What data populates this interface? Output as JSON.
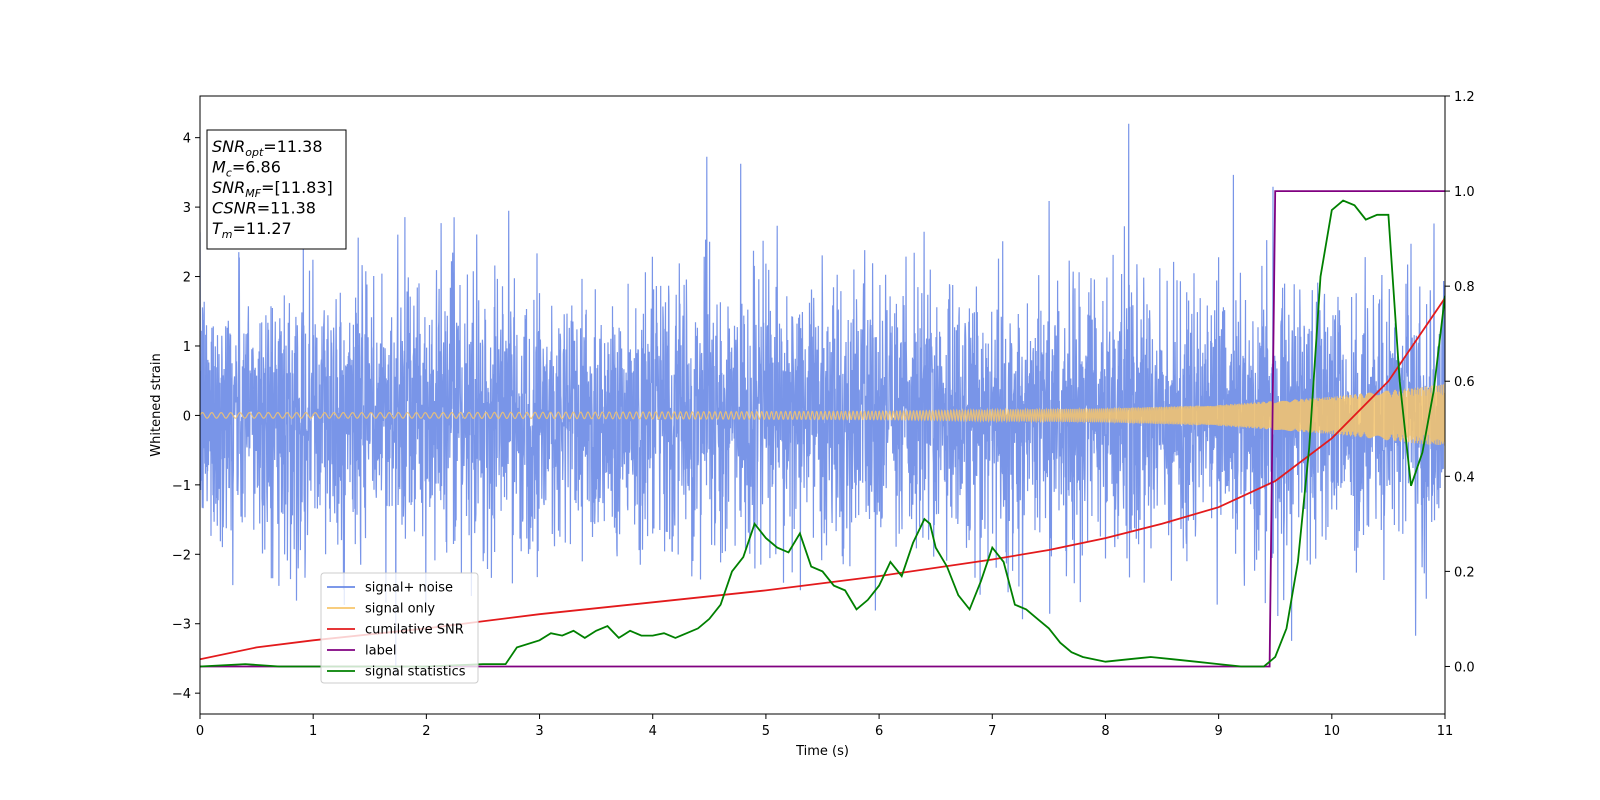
{
  "chart_data": {
    "type": "line",
    "xlabel": "Time (s)",
    "ylabel": "Whitened strain",
    "xlim": [
      0,
      11
    ],
    "ylim": [
      -4.3,
      4.6
    ],
    "y2lim": [
      -0.1,
      1.2
    ],
    "xticks": [
      0,
      1,
      2,
      3,
      4,
      5,
      6,
      7,
      8,
      9,
      10,
      11
    ],
    "yticks": [
      -4,
      -3,
      -2,
      -1,
      0,
      1,
      2,
      3,
      4
    ],
    "y2ticks": [
      "0.0",
      "0.2",
      "0.4",
      "0.6",
      "0.8",
      "1.0",
      "1.2"
    ],
    "grid": false,
    "legend": "lower-left",
    "colors": {
      "signal_noise": "#6a8ae6",
      "signal_only": "#f7c66b",
      "cumulative_snr": "#e31a1c",
      "label": "#800080",
      "signal_statistics": "#008000"
    },
    "series": [
      {
        "name": "signal+ noise",
        "axis": "left",
        "description_values": "noise band roughly between -2.5 and 2.5 with spikes up to 4.2 and down to -3.9"
      },
      {
        "name": "signal only",
        "axis": "left",
        "envelope": {
          "x": [
            0,
            2,
            4,
            6,
            8,
            9,
            10,
            11
          ],
          "amp": [
            0.04,
            0.04,
            0.05,
            0.06,
            0.1,
            0.15,
            0.27,
            0.45
          ]
        }
      },
      {
        "name": "cumilative SNR",
        "axis": "right",
        "x": [
          0,
          0.5,
          1,
          2,
          3,
          4,
          5,
          6,
          7,
          7.5,
          8,
          8.5,
          9,
          9.5,
          10,
          10.5,
          11
        ],
        "values": [
          0.015,
          0.04,
          0.055,
          0.08,
          0.11,
          0.135,
          0.16,
          0.19,
          0.225,
          0.245,
          0.27,
          0.3,
          0.335,
          0.39,
          0.48,
          0.6,
          0.775
        ]
      },
      {
        "name": "label",
        "axis": "right",
        "x": [
          0,
          9.45,
          9.5,
          11
        ],
        "values": [
          0,
          0,
          1,
          1
        ]
      },
      {
        "name": "signal statistics",
        "axis": "right",
        "x": [
          0,
          0.4,
          0.7,
          1,
          2,
          2.5,
          2.7,
          2.8,
          3,
          3.1,
          3.2,
          3.3,
          3.4,
          3.5,
          3.6,
          3.7,
          3.8,
          3.9,
          4,
          4.1,
          4.2,
          4.3,
          4.4,
          4.5,
          4.6,
          4.7,
          4.8,
          4.9,
          5,
          5.1,
          5.2,
          5.3,
          5.4,
          5.5,
          5.6,
          5.7,
          5.8,
          5.9,
          6,
          6.1,
          6.2,
          6.3,
          6.4,
          6.45,
          6.5,
          6.6,
          6.7,
          6.8,
          6.9,
          7,
          7.1,
          7.2,
          7.3,
          7.4,
          7.5,
          7.6,
          7.7,
          7.8,
          8,
          8.2,
          8.4,
          8.6,
          8.8,
          9,
          9.2,
          9.4,
          9.5,
          9.6,
          9.7,
          9.8,
          9.9,
          10,
          10.1,
          10.2,
          10.3,
          10.4,
          10.5,
          10.6,
          10.7,
          10.8,
          10.9,
          11
        ],
        "values": [
          0,
          0.005,
          0,
          0,
          0,
          0.005,
          0.005,
          0.04,
          0.055,
          0.07,
          0.065,
          0.075,
          0.06,
          0.075,
          0.085,
          0.06,
          0.075,
          0.065,
          0.065,
          0.07,
          0.06,
          0.07,
          0.08,
          0.1,
          0.13,
          0.2,
          0.23,
          0.3,
          0.27,
          0.25,
          0.24,
          0.28,
          0.21,
          0.2,
          0.17,
          0.16,
          0.12,
          0.14,
          0.17,
          0.22,
          0.19,
          0.26,
          0.31,
          0.3,
          0.25,
          0.21,
          0.15,
          0.12,
          0.18,
          0.25,
          0.22,
          0.13,
          0.12,
          0.1,
          0.08,
          0.05,
          0.03,
          0.02,
          0.01,
          0.015,
          0.02,
          0.015,
          0.01,
          0.005,
          0,
          0,
          0.02,
          0.08,
          0.22,
          0.46,
          0.82,
          0.96,
          0.98,
          0.97,
          0.94,
          0.95,
          0.95,
          0.6,
          0.38,
          0.45,
          0.58,
          0.78
        ]
      }
    ],
    "annotation": {
      "lines": [
        {
          "main": "SNR",
          "sub": "opt",
          "rest": "=11.38"
        },
        {
          "main": "M",
          "sub": "c",
          "rest": "=6.86"
        },
        {
          "main": "SNR",
          "sub": "MF",
          "rest": "=[11.83]"
        },
        {
          "main": "CSNR",
          "sub": "",
          "rest": "=11.38"
        },
        {
          "main": "T",
          "sub": "m",
          "rest": "=11.27"
        }
      ]
    }
  }
}
